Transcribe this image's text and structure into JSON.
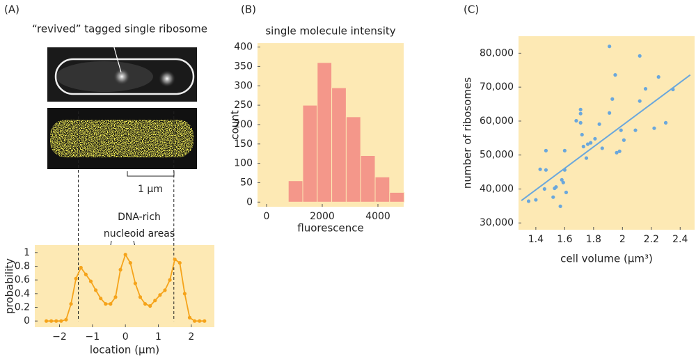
{
  "chart_data": [
    {
      "type": "line",
      "panel_label": "(A)",
      "annotations": [
        "“revived” tagged single ribosome",
        "1 μm",
        "DNA-rich",
        "nucleoid areas"
      ],
      "xlabel": "location (μm)",
      "ylabel": "probability",
      "x": [
        -2.4,
        -2.25,
        -2.1,
        -1.95,
        -1.8,
        -1.65,
        -1.5,
        -1.35,
        -1.2,
        -1.05,
        -0.9,
        -0.75,
        -0.6,
        -0.45,
        -0.3,
        -0.15,
        0,
        0.15,
        0.3,
        0.45,
        0.6,
        0.75,
        0.9,
        1.05,
        1.2,
        1.35,
        1.5,
        1.65,
        1.8,
        1.95,
        2.1,
        2.25,
        2.4
      ],
      "series": [
        {
          "color": "#f5a31a",
          "values": [
            0,
            0,
            0,
            0,
            0.02,
            0.25,
            0.62,
            0.78,
            0.68,
            0.58,
            0.45,
            0.33,
            0.25,
            0.25,
            0.35,
            0.75,
            0.97,
            0.85,
            0.55,
            0.35,
            0.25,
            0.22,
            0.3,
            0.38,
            0.45,
            0.6,
            0.9,
            0.85,
            0.4,
            0.05,
            0,
            0,
            0
          ]
        }
      ],
      "vlines": [
        -1.43,
        1.47
      ],
      "xlim": [
        -2.75,
        2.7
      ],
      "xticks": [
        {
          "value": -2,
          "label": "−2"
        },
        {
          "value": -1,
          "label": "−1"
        },
        0,
        1,
        2
      ],
      "ylim": [
        -0.09,
        1.11
      ],
      "yticks": [
        0,
        0.2,
        0.4,
        0.6,
        0.8,
        1
      ],
      "background": "#fde9b4"
    },
    {
      "type": "histogram",
      "panel_label": "(B)",
      "title": "single molecule intensity",
      "xlabel": "fluorescence",
      "ylabel": "count",
      "bins": [
        780,
        1300,
        1820,
        2340,
        2860,
        3380,
        3900,
        4420,
        4940
      ],
      "values": [
        55,
        250,
        360,
        295,
        220,
        120,
        65,
        25
      ],
      "color": "#f4978a",
      "xlim": [
        -325,
        4925
      ],
      "xticks": [
        0,
        2000,
        4000
      ],
      "ylim": [
        -12,
        410
      ],
      "yticks": [
        0,
        50,
        100,
        150,
        200,
        250,
        300,
        350,
        400
      ],
      "background": "#fde9b4"
    },
    {
      "type": "scatter",
      "panel_label": "(C)",
      "xlabel": "cell volume (μm³)",
      "ylabel": "number of ribosomes",
      "x": [
        1.35,
        1.4,
        1.43,
        1.46,
        1.47,
        1.47,
        1.52,
        1.53,
        1.54,
        1.57,
        1.58,
        1.59,
        1.6,
        1.6,
        1.61,
        1.68,
        1.71,
        1.71,
        1.71,
        1.72,
        1.73,
        1.75,
        1.76,
        1.78,
        1.81,
        1.84,
        1.86,
        1.91,
        1.91,
        1.93,
        1.95,
        1.96,
        1.98,
        1.99,
        2.01,
        2.09,
        2.12,
        2.12,
        2.16,
        2.22,
        2.25,
        2.3,
        2.35
      ],
      "y": [
        36400,
        36800,
        45800,
        40000,
        45600,
        51300,
        37600,
        40200,
        40600,
        34900,
        42700,
        41900,
        45600,
        51300,
        39000,
        60100,
        59500,
        63400,
        62200,
        56000,
        52500,
        49100,
        53200,
        53600,
        54800,
        59100,
        52000,
        62400,
        82000,
        66500,
        73600,
        50700,
        51100,
        57300,
        54400,
        57300,
        79200,
        65900,
        69500,
        57900,
        73000,
        59500,
        69300
      ],
      "color": "#6aa7dc",
      "trend_line": {
        "x": [
          1.3,
          2.47
        ],
        "y": [
          36600,
          73600
        ],
        "color": "#6aa7dc"
      },
      "xlim": [
        1.28,
        2.5
      ],
      "xticks": [
        1.4,
        1.6,
        1.8,
        2.0,
        2.2,
        2.4
      ],
      "ylim": [
        28000,
        85000
      ],
      "yticks": [
        {
          "value": 30000,
          "label": "30,000"
        },
        {
          "value": 40000,
          "label": "40,000"
        },
        {
          "value": 50000,
          "label": "50,000"
        },
        {
          "value": 60000,
          "label": "60,000"
        },
        {
          "value": 70000,
          "label": "70,000"
        },
        {
          "value": 80000,
          "label": "80,000"
        }
      ],
      "background": "#fde9b4"
    }
  ]
}
